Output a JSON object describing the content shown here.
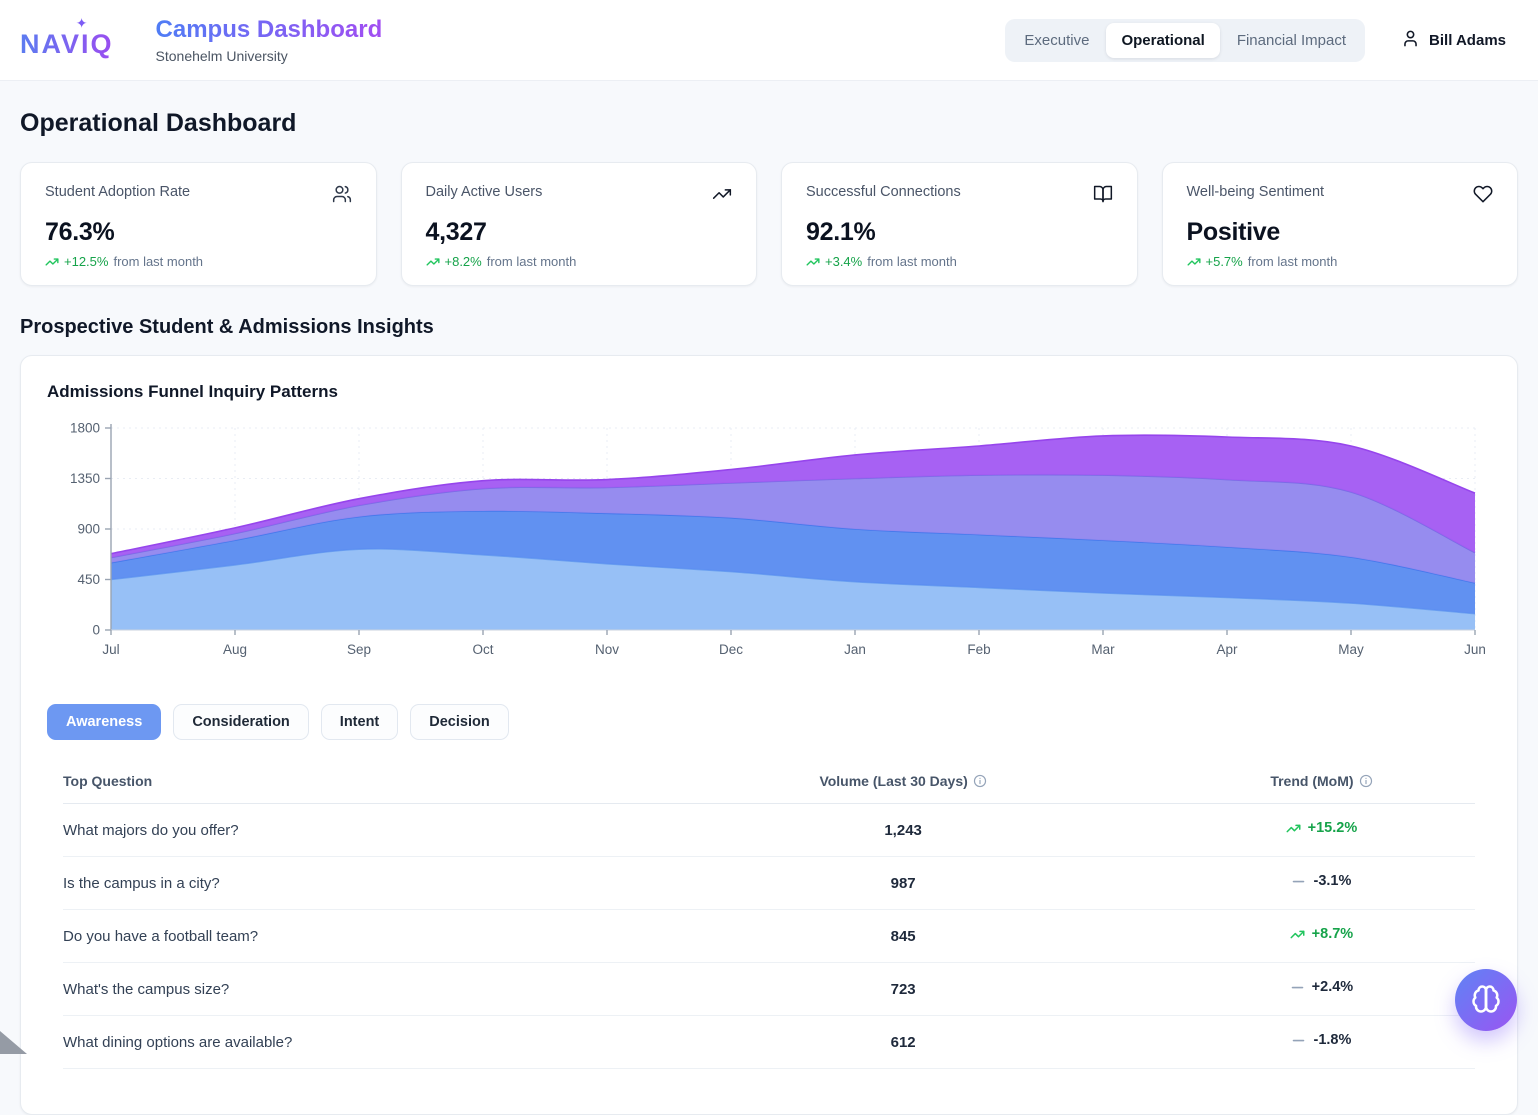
{
  "header": {
    "logo": "NAVIQ",
    "logo_sparkle": "✦",
    "title": "Campus Dashboard",
    "subtitle": "Stonehelm University",
    "tabs": [
      {
        "label": "Executive",
        "active": false
      },
      {
        "label": "Operational",
        "active": true
      },
      {
        "label": "Financial Impact",
        "active": false
      }
    ],
    "user": "Bill Adams"
  },
  "page": {
    "title": "Operational Dashboard",
    "section_title": "Prospective Student & Admissions Insights"
  },
  "kpi_cards": [
    {
      "title": "Student Adoption Rate",
      "value": "76.3%",
      "delta": "+12.5%",
      "delta_suffix": "from last month",
      "icon": "users"
    },
    {
      "title": "Daily Active Users",
      "value": "4,327",
      "delta": "+8.2%",
      "delta_suffix": "from last month",
      "icon": "trending-up"
    },
    {
      "title": "Successful Connections",
      "value": "92.1%",
      "delta": "+3.4%",
      "delta_suffix": "from last month",
      "icon": "book-open"
    },
    {
      "title": "Well-being Sentiment",
      "value": "Positive",
      "delta": "+5.7%",
      "delta_suffix": "from last month",
      "icon": "heart"
    }
  ],
  "chart_card": {
    "title": "Admissions Funnel Inquiry Patterns"
  },
  "chart_data": {
    "type": "area",
    "stacked": true,
    "title": "Admissions Funnel Inquiry Patterns",
    "x": [
      "Jul",
      "Aug",
      "Sep",
      "Oct",
      "Nov",
      "Dec",
      "Jan",
      "Feb",
      "Mar",
      "Apr",
      "May",
      "Jun"
    ],
    "series": [
      {
        "name": "Awareness",
        "values": [
          450,
          580,
          720,
          670,
          590,
          520,
          430,
          380,
          330,
          290,
          240,
          145
        ],
        "fill": "#93bdf6",
        "stroke": "#6ba0f0"
      },
      {
        "name": "Consideration",
        "values": [
          150,
          220,
          290,
          390,
          450,
          480,
          470,
          470,
          470,
          450,
          410,
          275
        ],
        "fill": "#5b8df0",
        "stroke": "#4478ec"
      },
      {
        "name": "Intent",
        "values": [
          45,
          60,
          100,
          200,
          230,
          310,
          450,
          530,
          580,
          600,
          580,
          270
        ],
        "fill": "#9287ee",
        "stroke": "#7b6ce6"
      },
      {
        "name": "Decision",
        "values": [
          35,
          50,
          60,
          70,
          70,
          120,
          210,
          260,
          350,
          380,
          410,
          530
        ],
        "fill": "#a35bf2",
        "stroke": "#9645ec"
      }
    ],
    "ylim": [
      0,
      1800
    ],
    "yticks": [
      0,
      450,
      900,
      1350,
      1800
    ],
    "grid": true,
    "legend": "none"
  },
  "filters": {
    "options": [
      "Awareness",
      "Consideration",
      "Intent",
      "Decision"
    ],
    "active_index": 0
  },
  "table": {
    "headers": {
      "question": "Top Question",
      "volume": "Volume (Last 30 Days)",
      "trend": "Trend (MoM)"
    },
    "rows": [
      {
        "question": "What majors do you offer?",
        "volume": "1,243",
        "trend": "+15.2%",
        "direction": "up"
      },
      {
        "question": "Is the campus in a city?",
        "volume": "987",
        "trend": "-3.1%",
        "direction": "flat"
      },
      {
        "question": "Do you have a football team?",
        "volume": "845",
        "trend": "+8.7%",
        "direction": "up"
      },
      {
        "question": "What's the campus size?",
        "volume": "723",
        "trend": "+2.4%",
        "direction": "flat"
      },
      {
        "question": "What dining options are available?",
        "volume": "612",
        "trend": "-1.8%",
        "direction": "flat"
      }
    ]
  },
  "colors": {
    "accent_blue": "#6d98f2",
    "gradient_start": "#4f7df5",
    "gradient_end": "#a24df2",
    "positive_green": "#16a34a",
    "neutral_gray": "#94a3b8"
  }
}
